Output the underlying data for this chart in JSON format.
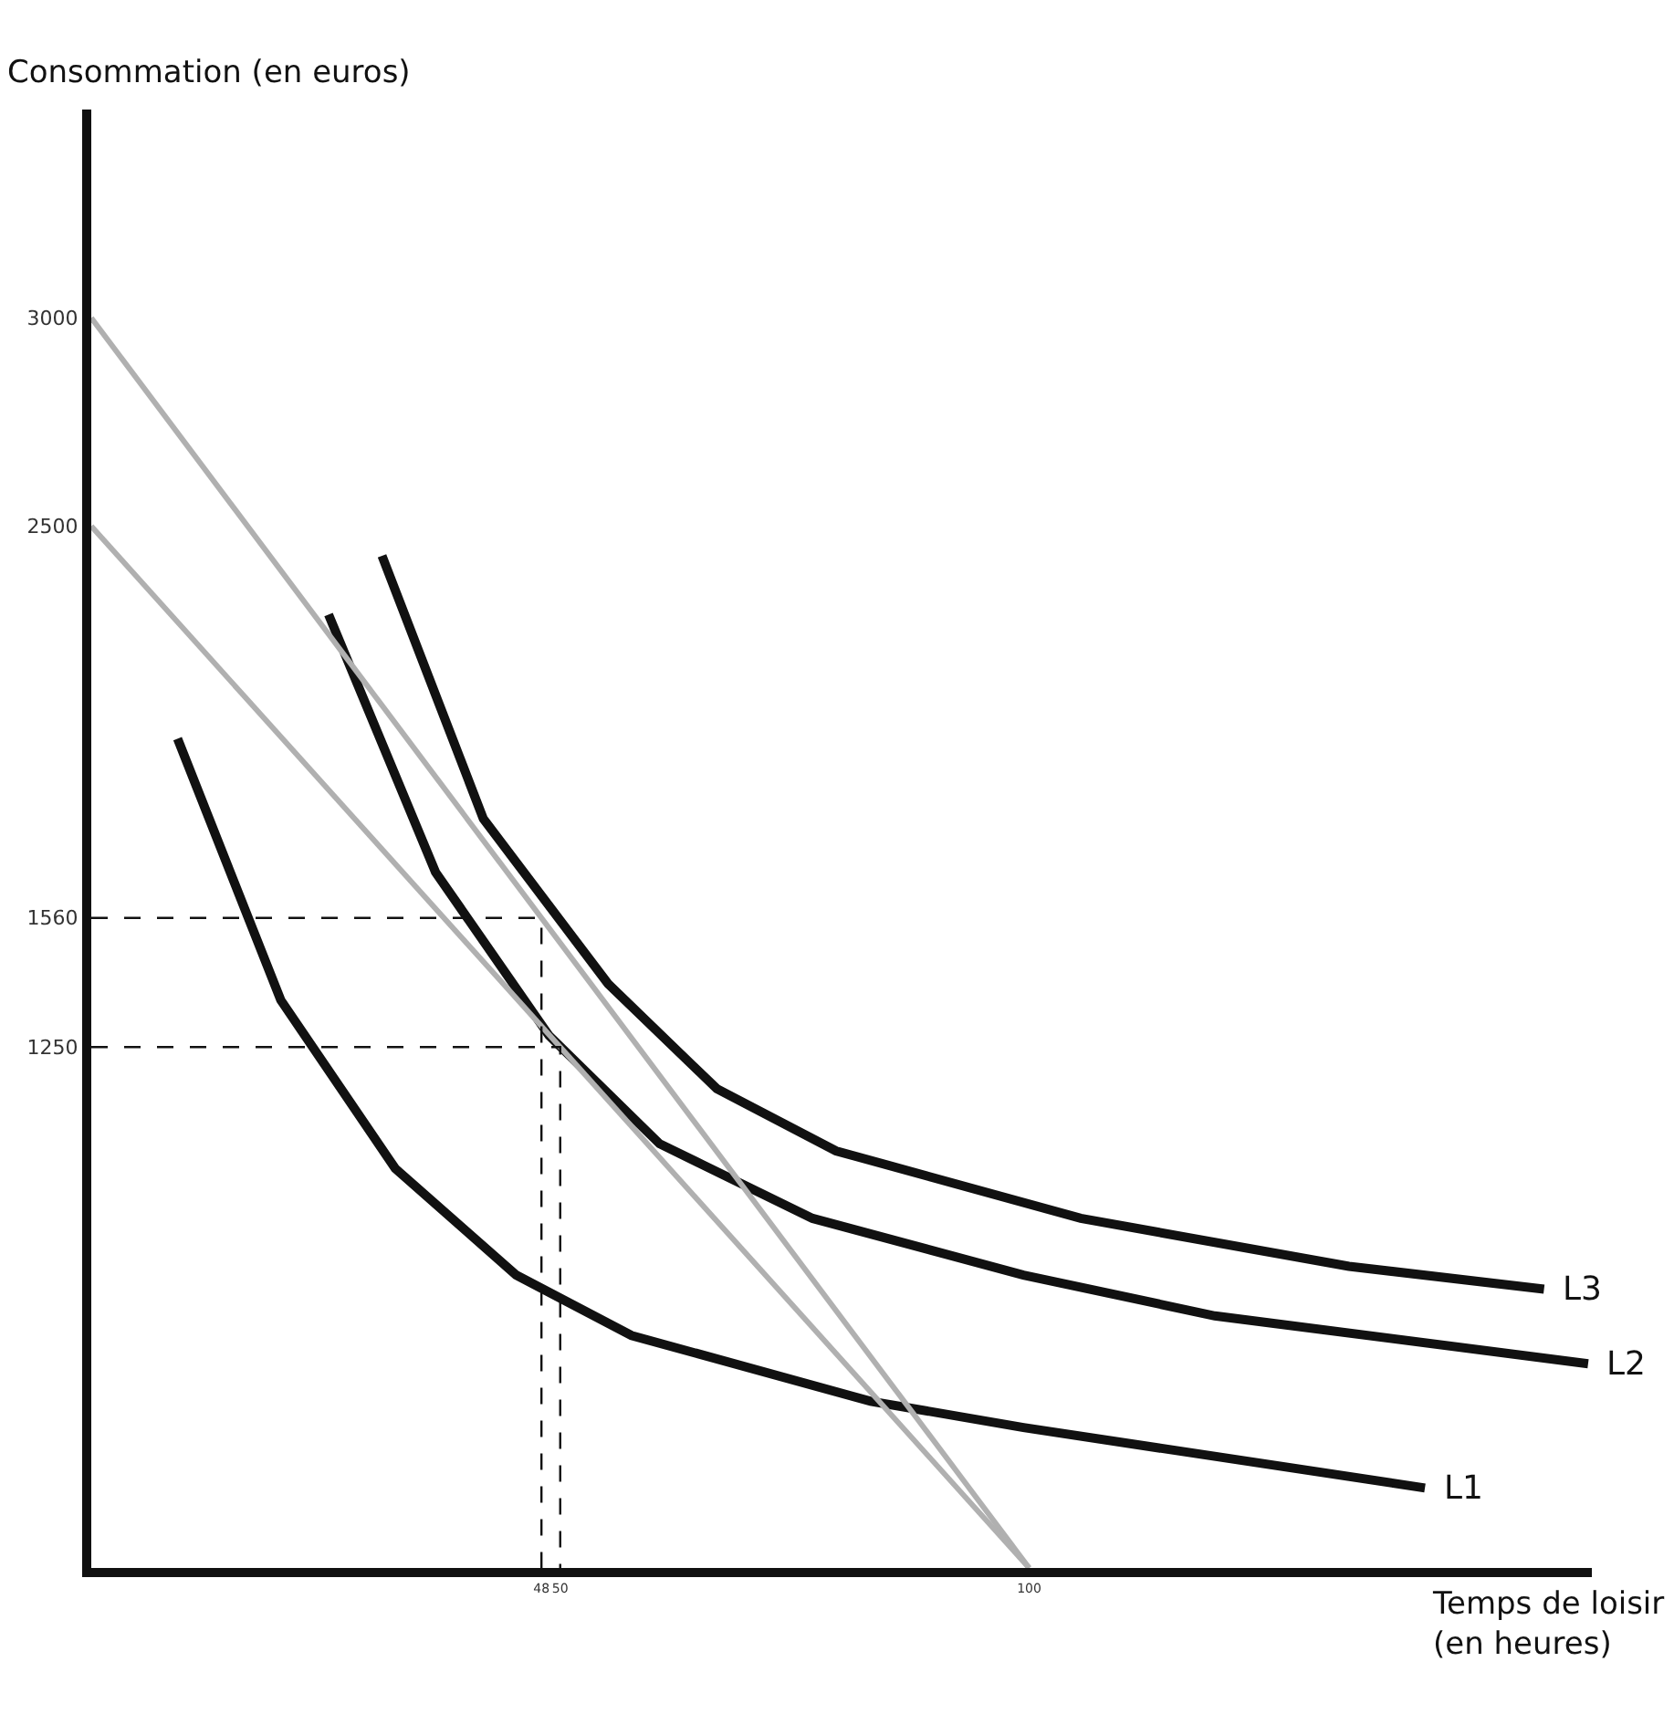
{
  "chart_data": {
    "type": "line",
    "xlabel": "Temps de loisir\n(en heures)",
    "ylabel": "Consommation (en euros)",
    "xlim": [
      0,
      160
    ],
    "ylim": [
      0,
      3500
    ],
    "xticks": [
      48,
      50,
      100
    ],
    "yticks": [
      1250,
      1560,
      2500,
      3000
    ],
    "legend": false,
    "series": [
      {
        "name": "L1",
        "color": "#111111",
        "x": [
          9.2,
          20.2,
          32.4,
          45.3,
          57.6,
          83.1,
          99.4,
          142.2
        ],
        "values": [
          1990,
          1363,
          959,
          703,
          558,
          400,
          337,
          192
        ]
      },
      {
        "name": "L2",
        "color": "#111111",
        "x": [
          25.3,
          36.7,
          48.8,
          60.6,
          76.9,
          99.4,
          119.8,
          159.6
        ],
        "values": [
          2288,
          1670,
          1278,
          1018,
          839,
          703,
          605,
          490
        ]
      },
      {
        "name": "L3",
        "color": "#111111",
        "x": [
          31.0,
          41.8,
          55.1,
          66.7,
          79.4,
          105.5,
          134.1,
          154.9
        ],
        "values": [
          2429,
          1798,
          1402,
          1150,
          1001,
          839,
          724,
          669
        ]
      },
      {
        "color": "#b0b0b0",
        "x": [
          0,
          100
        ],
        "values": [
          3000,
          0
        ]
      },
      {
        "color": "#b0b0b0",
        "x": [
          0,
          100
        ],
        "values": [
          2500,
          0
        ]
      },
      {
        "color": "#111111",
        "line_style": "dashed",
        "x": [
          0,
          48,
          48
        ],
        "values": [
          1560,
          1560,
          0
        ]
      },
      {
        "color": "#111111",
        "line_style": "dashed",
        "x": [
          0,
          50,
          50
        ],
        "values": [
          1250,
          1250,
          0
        ]
      }
    ]
  }
}
